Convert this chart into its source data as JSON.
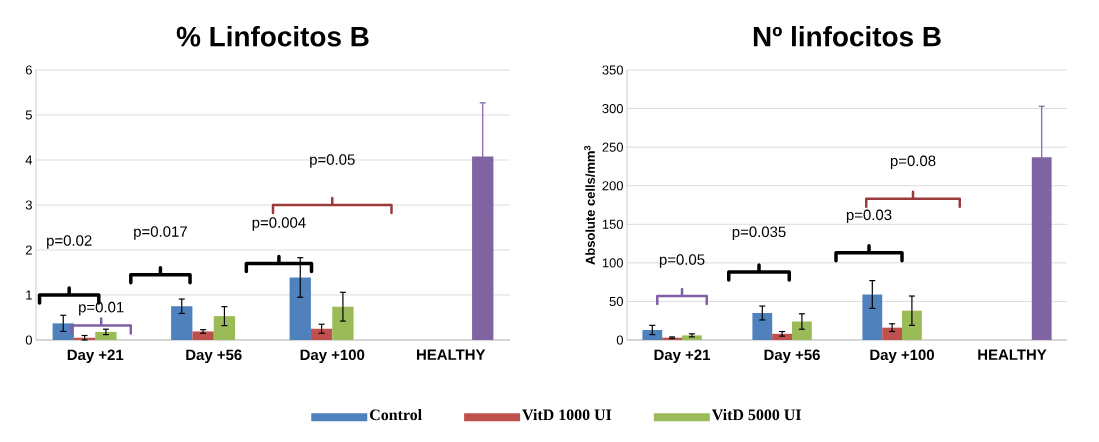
{
  "chart_data": [
    {
      "type": "bar",
      "title": "% Linfocitos B",
      "categories": [
        "Day +21",
        "Day +56",
        "Day +100",
        "HEALTHY"
      ],
      "series": [
        {
          "name": "Control",
          "color": "#4f81bd",
          "values": [
            0.37,
            0.75,
            1.39,
            null
          ],
          "errors": [
            0.18,
            0.16,
            0.44,
            null
          ]
        },
        {
          "name": "VitD 1000 UI",
          "color": "#c0504d",
          "values": [
            0.05,
            0.19,
            0.25,
            null
          ],
          "errors": [
            0.05,
            0.04,
            0.1,
            null
          ]
        },
        {
          "name": "VitD 5000 UI",
          "color": "#9bbb59",
          "values": [
            0.18,
            0.53,
            0.74,
            null
          ],
          "errors": [
            0.06,
            0.21,
            0.32,
            null
          ]
        },
        {
          "color": "#8064a2",
          "values": [
            null,
            null,
            null,
            4.08
          ],
          "errors": [
            null,
            null,
            null,
            1.19
          ]
        }
      ],
      "ylim": [
        0,
        6
      ],
      "yticks": [
        0,
        1,
        2,
        3,
        4,
        5,
        6
      ],
      "grid": "y",
      "legend": "bottom",
      "annotations": [
        "p=0.02",
        "p=0.01",
        "p=0.017",
        "p=0.004",
        "p=0.05"
      ]
    },
    {
      "type": "bar",
      "title": "Nº linfocitos B",
      "ylabel": "Absolute cells/mm$^{3}$",
      "categories": [
        "Day +21",
        "Day +56",
        "Day +100",
        "HEALTHY"
      ],
      "series": [
        {
          "color": "#4f81bd",
          "values": [
            13,
            35,
            59,
            null
          ],
          "errors": [
            6,
            9,
            18,
            null
          ]
        },
        {
          "color": "#c0504d",
          "values": [
            3,
            8,
            16,
            null
          ],
          "errors": [
            1,
            3,
            5,
            null
          ]
        },
        {
          "color": "#9bbb59",
          "values": [
            6,
            24,
            38,
            null
          ],
          "errors": [
            2,
            10,
            19,
            null
          ]
        },
        {
          "color": "#8064a2",
          "values": [
            null,
            null,
            null,
            237
          ],
          "errors": [
            null,
            null,
            null,
            66
          ]
        }
      ],
      "ylim": [
        0,
        350
      ],
      "yticks": [
        0,
        50,
        100,
        150,
        200,
        250,
        300,
        350
      ],
      "grid": "y",
      "annotations": [
        "p=0.05",
        "p=0.035",
        "p=0.03",
        "p=0.08"
      ]
    }
  ]
}
